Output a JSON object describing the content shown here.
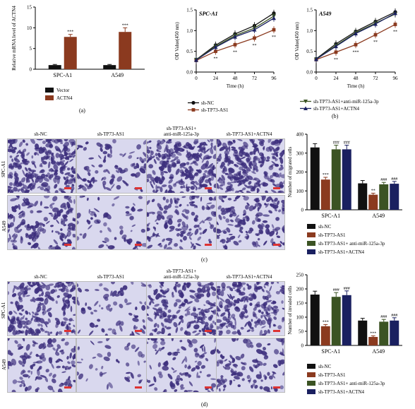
{
  "panels": {
    "a": "(a)",
    "b": "(b)",
    "c": "(c)",
    "d": "(d)"
  },
  "colors": {
    "vector": "#111111",
    "actn4": "#8b3a1f",
    "sh_nc": "#111111",
    "sh_tp73": "#8b3a1f",
    "anti_mir": "#3b5323",
    "sh_actn4": "#1a2060",
    "microscopy_bg": "#d9d8ee",
    "cell_stain": "#3d2f7d"
  },
  "chart_data": [
    {
      "id": "a",
      "type": "bar",
      "title": "",
      "ylabel": "Relative mRNA level of ACTN4",
      "xlabel": "",
      "categories": [
        "SPC-A1",
        "A549"
      ],
      "ylim": [
        0,
        15
      ],
      "yticks": [
        "0",
        "5",
        "10",
        "15"
      ],
      "series": [
        {
          "name": "Vector",
          "values": [
            1.0,
            1.0
          ],
          "errors": [
            0.15,
            0.15
          ],
          "sig": [
            "",
            ""
          ]
        },
        {
          "name": "ACTN4",
          "values": [
            7.8,
            9.0
          ],
          "errors": [
            0.6,
            1.0
          ],
          "sig": [
            "***",
            "***"
          ]
        }
      ]
    },
    {
      "id": "b1",
      "type": "line",
      "title": "SPC-A1",
      "xlabel": "Time (h)",
      "ylabel": "OD Value(450 nm)",
      "x": [
        0,
        24,
        48,
        72,
        96
      ],
      "xticks": [
        "0",
        "24",
        "48",
        "72",
        "96"
      ],
      "ylim": [
        0,
        1.5
      ],
      "yticks": [
        "0.0",
        "0.5",
        "1.0",
        "1.5"
      ],
      "series": [
        {
          "name": "sh-NC",
          "values": [
            0.3,
            0.65,
            0.92,
            1.12,
            1.42
          ]
        },
        {
          "name": "sh-TP73-AS1",
          "values": [
            0.28,
            0.5,
            0.66,
            0.82,
            1.02
          ],
          "sig": [
            "",
            "**",
            "**",
            "**",
            "**"
          ]
        },
        {
          "name": "sh-TP73-AS1+anti-miR-125a-3p",
          "values": [
            0.3,
            0.62,
            0.88,
            1.06,
            1.35
          ]
        },
        {
          "name": "sh-TP73-AS1+ACTN4",
          "values": [
            0.29,
            0.6,
            0.85,
            1.02,
            1.3
          ]
        }
      ]
    },
    {
      "id": "b2",
      "type": "line",
      "title": "A549",
      "xlabel": "Time (h)",
      "ylabel": "OD Value(450 nm)",
      "x": [
        0,
        24,
        48,
        72,
        96
      ],
      "xticks": [
        "0",
        "24",
        "48",
        "72",
        "96"
      ],
      "ylim": [
        0,
        1.5
      ],
      "yticks": [
        "0.0",
        "0.5",
        "1.0",
        "1.5"
      ],
      "series": [
        {
          "name": "sh-NC",
          "values": [
            0.32,
            0.68,
            0.98,
            1.22,
            1.45
          ]
        },
        {
          "name": "sh-TP73-AS1",
          "values": [
            0.3,
            0.48,
            0.66,
            0.9,
            1.15
          ],
          "sig": [
            "",
            "**",
            "***",
            "**",
            "**"
          ]
        },
        {
          "name": "sh-TP73-AS1+anti-miR-125a-3p",
          "values": [
            0.31,
            0.64,
            0.95,
            1.18,
            1.4
          ]
        },
        {
          "name": "sh-TP73-AS1+ACTN4",
          "values": [
            0.31,
            0.62,
            0.93,
            1.16,
            1.42
          ]
        }
      ]
    },
    {
      "id": "c",
      "type": "bar",
      "title": "",
      "ylabel": "Number of migrated cells",
      "xlabel": "",
      "categories": [
        "SPC-A1",
        "A549"
      ],
      "ylim": [
        0,
        400
      ],
      "yticks": [
        "0",
        "100",
        "200",
        "300",
        "400"
      ],
      "series": [
        {
          "name": "sh-NC",
          "values": [
            330,
            140
          ],
          "errors": [
            20,
            15
          ],
          "sig": [
            "",
            ""
          ]
        },
        {
          "name": "sh-TP73-AS1",
          "values": [
            160,
            80
          ],
          "errors": [
            12,
            8
          ],
          "sig": [
            "***",
            "**"
          ]
        },
        {
          "name": "sh-TP73-AS1+ anti-miR-125a-3p",
          "values": [
            320,
            135
          ],
          "errors": [
            22,
            10
          ],
          "sig": [
            "###",
            "###"
          ]
        },
        {
          "name": "sh-TP73-AS1+ACTN4",
          "values": [
            320,
            138
          ],
          "errors": [
            22,
            12
          ],
          "sig": [
            "###",
            "###"
          ]
        }
      ]
    },
    {
      "id": "d",
      "type": "bar",
      "title": "",
      "ylabel": "Number of invaded cells",
      "xlabel": "",
      "categories": [
        "SPC-A1",
        "A549"
      ],
      "ylim": [
        0,
        250
      ],
      "yticks": [
        "0",
        "50",
        "100",
        "150",
        "200",
        "250"
      ],
      "series": [
        {
          "name": "sh-NC",
          "values": [
            180,
            88
          ],
          "errors": [
            12,
            8
          ],
          "sig": [
            "",
            ""
          ]
        },
        {
          "name": "sh-TP73-AS1",
          "values": [
            68,
            30
          ],
          "errors": [
            6,
            4
          ],
          "sig": [
            "***",
            "***"
          ]
        },
        {
          "name": "sh-TP73-AS1+ anti-miR-125a-3p",
          "values": [
            172,
            84
          ],
          "errors": [
            15,
            8
          ],
          "sig": [
            "###",
            "###"
          ]
        },
        {
          "name": "sh-TP73-AS1+ACTN4",
          "values": [
            178,
            88
          ],
          "errors": [
            15,
            10
          ],
          "sig": [
            "###",
            "###"
          ]
        }
      ]
    }
  ],
  "panel_c": {
    "col_labels": [
      "sh-NC",
      "sh-TP73-AS1",
      "sh-TP73-AS1+\nanti-miR-125a-3p",
      "sh-TP73-AS1+ACTN4"
    ],
    "row_labels": [
      "SPC-A1",
      "A549"
    ]
  },
  "panel_d": {
    "col_labels": [
      "sh-NC",
      "sh-TP73-AS1",
      "sh-TP73-AS1+\nanti-miR-125a-3p",
      "sh-TP73-AS1+ACTN4"
    ],
    "row_labels": [
      "SPC-A1",
      "A549"
    ]
  },
  "legend_b": {
    "left": [
      "sh-NC",
      "sh-TP73-AS1"
    ],
    "right": [
      "sh-TP73-AS1+anti-miR-125a-3p",
      "sh-TP73-AS1+ACTN4"
    ]
  }
}
